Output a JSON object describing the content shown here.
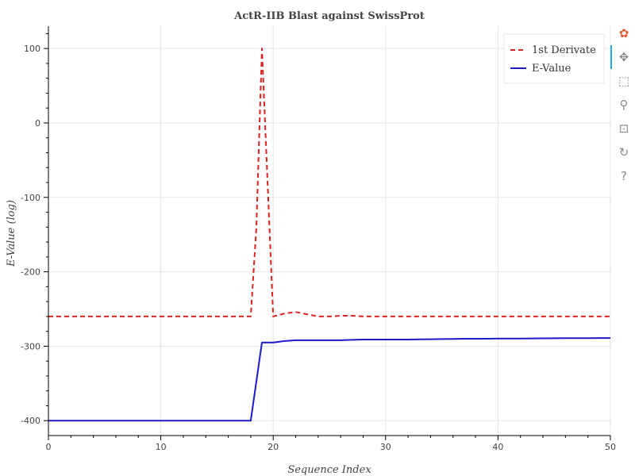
{
  "chart_data": {
    "type": "line",
    "title": "ActR-IIB Blast against SwissProt",
    "xlabel": "Sequence Index",
    "ylabel": "E-Value (log)",
    "xlim": [
      0,
      50
    ],
    "ylim": [
      -420,
      130
    ],
    "x_ticks": [
      0,
      10,
      20,
      30,
      40,
      50
    ],
    "y_ticks": [
      -400,
      -300,
      -200,
      -100,
      0,
      100
    ],
    "grid": true,
    "legend_position": "top-right",
    "series": [
      {
        "name": "1st Derivate",
        "color": "#dd2222",
        "dash": "dashed",
        "x": [
          0,
          1,
          2,
          3,
          4,
          5,
          6,
          7,
          8,
          9,
          10,
          11,
          12,
          13,
          14,
          15,
          16,
          17,
          18,
          18.5,
          19,
          20,
          21,
          22,
          23,
          24,
          25,
          26,
          27,
          28,
          29,
          30,
          31,
          32,
          33,
          34,
          35,
          36,
          37,
          38,
          39,
          40,
          41,
          42,
          43,
          44,
          45,
          46,
          47,
          48,
          49,
          50
        ],
        "y": [
          -260,
          -260,
          -260,
          -260,
          -260,
          -260,
          -260,
          -260,
          -260,
          -260,
          -260,
          -260,
          -260,
          -260,
          -260,
          -260,
          -260,
          -260,
          -260,
          -140,
          100,
          -260,
          -256,
          -254,
          -257,
          -260,
          -260,
          -259,
          -259,
          -260,
          -260,
          -260,
          -260,
          -260,
          -260,
          -260,
          -260,
          -260,
          -260,
          -260,
          -260,
          -260,
          -260,
          -260,
          -260,
          -260,
          -260,
          -260,
          -260,
          -260,
          -260,
          -260
        ]
      },
      {
        "name": "E-Value",
        "color": "#1a1acc",
        "dash": "solid",
        "x": [
          0,
          1,
          2,
          3,
          4,
          5,
          6,
          7,
          8,
          9,
          10,
          11,
          12,
          13,
          14,
          15,
          16,
          17,
          18,
          19,
          20,
          21,
          22,
          23,
          24,
          25,
          26,
          27,
          28,
          29,
          30,
          31,
          32,
          33,
          34,
          35,
          36,
          37,
          38,
          39,
          40,
          41,
          42,
          43,
          44,
          45,
          46,
          47,
          48,
          49,
          50
        ],
        "y": [
          -400,
          -400,
          -400,
          -400,
          -400,
          -400,
          -400,
          -400,
          -400,
          -400,
          -400,
          -400,
          -400,
          -400,
          -400,
          -400,
          -400,
          -400,
          -400,
          -295,
          -295,
          -293,
          -292,
          -292,
          -292,
          -292,
          -292,
          -291.5,
          -291,
          -291,
          -291,
          -291,
          -291,
          -290.8,
          -290.6,
          -290.4,
          -290.2,
          -290,
          -290,
          -290,
          -289.8,
          -289.7,
          -289.6,
          -289.5,
          -289.4,
          -289.3,
          -289.2,
          -289.1,
          -289.1,
          -289,
          -289
        ]
      }
    ]
  },
  "toolbar": {
    "tools": [
      {
        "name": "logo",
        "glyph": "✿",
        "color": "#e05a2b"
      },
      {
        "name": "pan",
        "glyph": "✥"
      },
      {
        "name": "box-zoom",
        "glyph": "⬚"
      },
      {
        "name": "wheel-zoom",
        "glyph": "⚲"
      },
      {
        "name": "save",
        "glyph": "⊡"
      },
      {
        "name": "reset",
        "glyph": "↻"
      },
      {
        "name": "help",
        "glyph": "?"
      }
    ]
  }
}
